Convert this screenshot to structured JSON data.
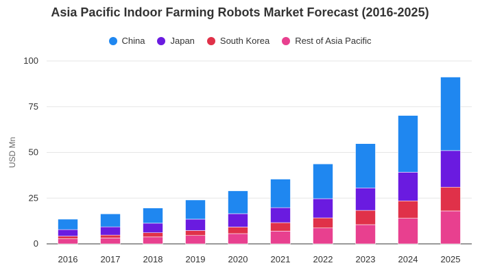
{
  "chart_data": {
    "type": "bar",
    "stacked": true,
    "title": "Asia Pacific Indoor Farming Robots Market Forecast (2016-2025)",
    "xlabel": "",
    "ylabel": "USD Mn",
    "ylim": [
      0,
      100
    ],
    "yticks": [
      0,
      25,
      50,
      75,
      100
    ],
    "grid": true,
    "legend_position": "top",
    "categories": [
      "2016",
      "2017",
      "2018",
      "2019",
      "2020",
      "2021",
      "2022",
      "2023",
      "2024",
      "2025"
    ],
    "series": [
      {
        "name": "Rest of Asia Pacific",
        "color": "#e8408f",
        "values": [
          2.8,
          3.2,
          3.8,
          4.6,
          5.6,
          7.0,
          8.7,
          10.5,
          14.0,
          18.0
        ]
      },
      {
        "name": "South Korea",
        "color": "#e03149",
        "values": [
          1.4,
          1.6,
          2.3,
          2.7,
          3.6,
          4.6,
          5.5,
          7.8,
          9.5,
          13.0
        ]
      },
      {
        "name": "Japan",
        "color": "#6a1be0",
        "values": [
          3.6,
          4.5,
          5.2,
          6.2,
          7.3,
          8.2,
          10.5,
          12.3,
          15.7,
          20.0
        ]
      },
      {
        "name": "China",
        "color": "#1f87f0",
        "values": [
          5.7,
          7.1,
          8.3,
          10.5,
          12.5,
          15.6,
          19.0,
          24.2,
          31.0,
          40.2
        ]
      }
    ]
  },
  "legend": {
    "items": [
      {
        "label": "China",
        "color": "#1f87f0"
      },
      {
        "label": "Japan",
        "color": "#6a1be0"
      },
      {
        "label": "South Korea",
        "color": "#e03149"
      },
      {
        "label": "Rest of Asia Pacific",
        "color": "#e8408f"
      }
    ]
  }
}
